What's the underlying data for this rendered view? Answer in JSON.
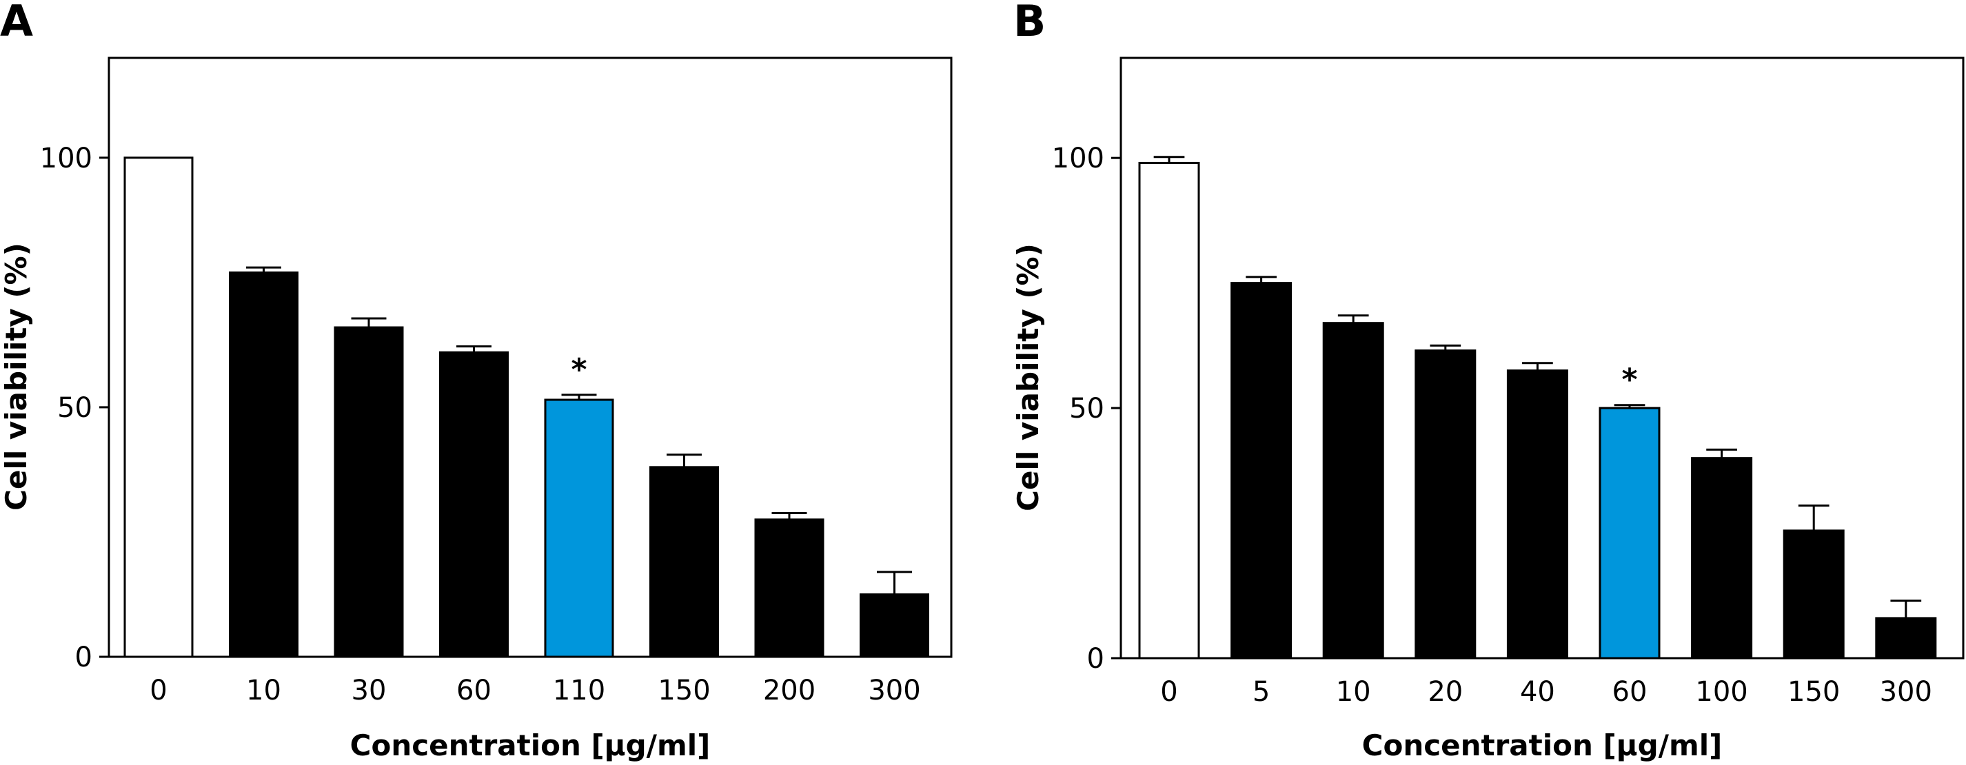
{
  "chart_data": [
    {
      "panel_label": "A",
      "type": "bar",
      "categories": [
        "0",
        "10",
        "30",
        "60",
        "110",
        "150",
        "200",
        "300"
      ],
      "values": [
        100,
        77,
        66,
        61,
        51.5,
        38,
        27.5,
        12.5
      ],
      "errors": [
        0,
        1,
        1.8,
        1.2,
        1,
        2.5,
        1.3,
        4.5
      ],
      "colors": [
        "#ffffff",
        "#000000",
        "#000000",
        "#000000",
        "#0096dc",
        "#000000",
        "#000000",
        "#000000"
      ],
      "annotations": [
        "",
        "",
        "",
        "",
        "*",
        "",
        "",
        ""
      ],
      "xlabel": "Concentration [µg/ml]",
      "ylabel": "Cell viability (%)",
      "ylim": [
        0,
        120
      ],
      "yticks": [
        0,
        50,
        100
      ],
      "grid": false,
      "legend": "none"
    },
    {
      "panel_label": "B",
      "type": "bar",
      "categories": [
        "0",
        "5",
        "10",
        "20",
        "40",
        "60",
        "100",
        "150",
        "300"
      ],
      "values": [
        99,
        75,
        67,
        61.5,
        57.5,
        50,
        40,
        25.5,
        8
      ],
      "errors": [
        1.2,
        1.2,
        1.5,
        1,
        1.5,
        0.6,
        1.7,
        5,
        3.5
      ],
      "colors": [
        "#ffffff",
        "#000000",
        "#000000",
        "#000000",
        "#000000",
        "#0096dc",
        "#000000",
        "#000000",
        "#000000"
      ],
      "annotations": [
        "",
        "",
        "",
        "",
        "",
        "*",
        "",
        "",
        ""
      ],
      "xlabel": "Concentration [µg/ml]",
      "ylabel": "Cell viability (%)",
      "ylim": [
        0,
        120
      ],
      "yticks": [
        0,
        50,
        100
      ],
      "grid": false,
      "legend": "none"
    }
  ]
}
